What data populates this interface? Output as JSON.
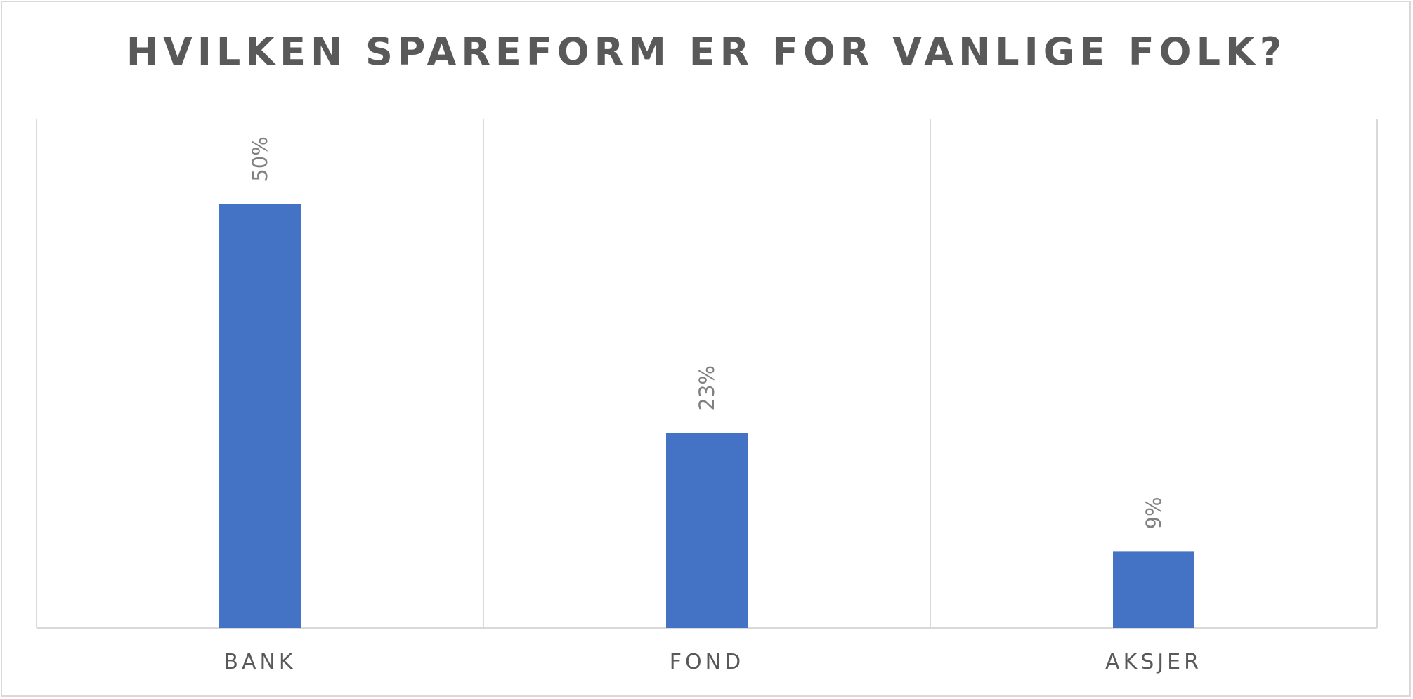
{
  "chart_data": {
    "type": "bar",
    "title": "HVILKEN SPAREFORM ER FOR VANLIGE FOLK?",
    "categories": [
      "BANK",
      "FOND",
      "AKSJER"
    ],
    "values": [
      50,
      23,
      9
    ],
    "data_labels": [
      "50%",
      "23%",
      "9%"
    ],
    "value_unit": "%",
    "ylim": [
      0,
      60
    ],
    "xlabel": "",
    "ylabel": "",
    "grid": "vertical category separators",
    "legend": "none",
    "colors": {
      "bar": "#4472c4",
      "gridline": "#d9d9d9",
      "title": "#595959",
      "data_label": "#808080",
      "tick_label": "#595959"
    }
  }
}
